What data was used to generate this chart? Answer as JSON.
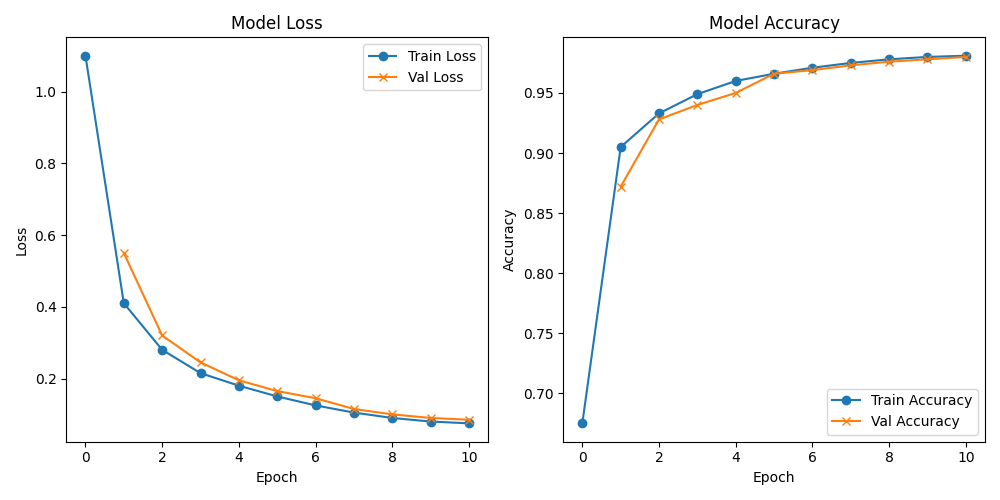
{
  "epochs": [
    0,
    1,
    2,
    3,
    4,
    5,
    6,
    7,
    8,
    9,
    10
  ],
  "train_loss": [
    1.1,
    0.41,
    0.28,
    0.215,
    0.18,
    0.15,
    0.125,
    0.105,
    0.09,
    0.08,
    0.075
  ],
  "val_loss": [
    null,
    0.55,
    0.32,
    0.245,
    0.195,
    0.165,
    0.145,
    0.115,
    0.1,
    0.09,
    0.085
  ],
  "train_acc": [
    0.675,
    0.905,
    0.933,
    0.949,
    0.96,
    0.966,
    0.971,
    0.975,
    0.978,
    0.98,
    0.981
  ],
  "val_acc": [
    null,
    0.872,
    0.928,
    0.94,
    0.95,
    0.966,
    0.969,
    0.973,
    0.976,
    0.978,
    0.98
  ],
  "train_loss_color": "#1f77b4",
  "val_loss_color": "#ff7f0e",
  "train_acc_color": "#1f77b4",
  "val_acc_color": "#ff7f0e",
  "loss_title": "Model Loss",
  "acc_title": "Model Accuracy",
  "xlabel": "Epoch",
  "ylabel_loss": "Loss",
  "ylabel_acc": "Accuracy",
  "legend_loss_train": "Train Loss",
  "legend_loss_val": "Val Loss",
  "legend_acc_train": "Train Accuracy",
  "legend_acc_val": "Val Accuracy",
  "figsize": [
    10.0,
    5.0
  ],
  "dpi": 100
}
